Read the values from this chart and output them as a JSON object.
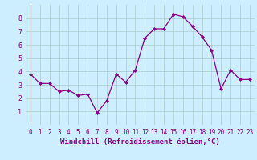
{
  "x": [
    0,
    1,
    2,
    3,
    4,
    5,
    6,
    7,
    8,
    9,
    10,
    11,
    12,
    13,
    14,
    15,
    16,
    17,
    18,
    19,
    20,
    21,
    22,
    23
  ],
  "y": [
    3.8,
    3.1,
    3.1,
    2.5,
    2.6,
    2.2,
    2.3,
    0.9,
    1.8,
    3.8,
    3.2,
    4.1,
    6.5,
    7.2,
    7.2,
    8.3,
    8.1,
    7.4,
    6.6,
    5.6,
    2.7,
    4.1,
    3.4,
    3.4
  ],
  "line_color": "#880088",
  "marker": "D",
  "marker_size": 2.0,
  "bg_color": "#cceeff",
  "grid_color": "#aacccc",
  "xlabel": "Windchill (Refroidissement éolien,°C)",
  "xlabel_color": "#880088",
  "xlim": [
    -0.5,
    23.5
  ],
  "ylim": [
    0,
    9
  ],
  "yticks": [
    1,
    2,
    3,
    4,
    5,
    6,
    7,
    8
  ],
  "xtick_labels": [
    "0",
    "1",
    "2",
    "3",
    "4",
    "5",
    "6",
    "7",
    "8",
    "9",
    "10",
    "11",
    "12",
    "13",
    "14",
    "15",
    "16",
    "17",
    "18",
    "19",
    "20",
    "21",
    "22",
    "23"
  ],
  "tick_color": "#880088",
  "axis_label_fontsize": 6.5,
  "tick_fontsize": 5.5
}
